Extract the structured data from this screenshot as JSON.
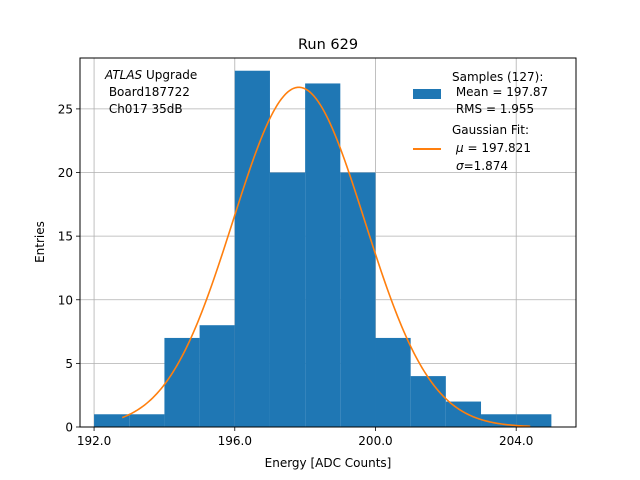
{
  "chart_data": {
    "type": "bar",
    "title": "Run 629",
    "xlabel": "Energy [ADC Counts]",
    "ylabel": "Entries",
    "xlim": [
      191.6,
      205.7
    ],
    "ylim": [
      0,
      29
    ],
    "grid": true,
    "x_ticks": [
      192.0,
      196.0,
      200.0,
      204.0
    ],
    "x_tick_labels": [
      "192.0",
      "196.0",
      "200.0",
      "204.0"
    ],
    "y_ticks": [
      0,
      5,
      10,
      15,
      20,
      25
    ],
    "y_tick_labels": [
      "0",
      "5",
      "10",
      "15",
      "20",
      "25"
    ],
    "annotation": {
      "line1_italic": "ATLAS",
      "line1_rest": " Upgrade",
      "line2": " Board187722",
      "line3": " Ch017 35dB"
    },
    "histogram": {
      "name": "Samples (127):",
      "color": "#1f77b4",
      "bin_edges": [
        192.0,
        193.0,
        194.0,
        195.0,
        196.0,
        197.0,
        198.0,
        199.0,
        200.0,
        201.0,
        202.0,
        203.0,
        204.0,
        205.0
      ],
      "counts": [
        1,
        1,
        7,
        8,
        28,
        20,
        27,
        20,
        7,
        4,
        2,
        1,
        1
      ]
    },
    "fit": {
      "name": "Gaussian Fit:",
      "color": "#ff7f0e",
      "mu": 197.821,
      "sigma": 1.874,
      "amplitude": 26.7,
      "x_range": [
        192.8,
        204.4
      ]
    },
    "legend": {
      "placement": "top-right",
      "hist_title": "Samples (127):",
      "hist_mean": " Mean = 197.87",
      "hist_rms": " RMS = 1.955",
      "fit_title": "Gaussian Fit:",
      "fit_mu_symbol": "μ",
      "fit_mu_value": " = 197.821",
      "fit_sigma_symbol": "σ",
      "fit_sigma_value": "=1.874"
    }
  }
}
